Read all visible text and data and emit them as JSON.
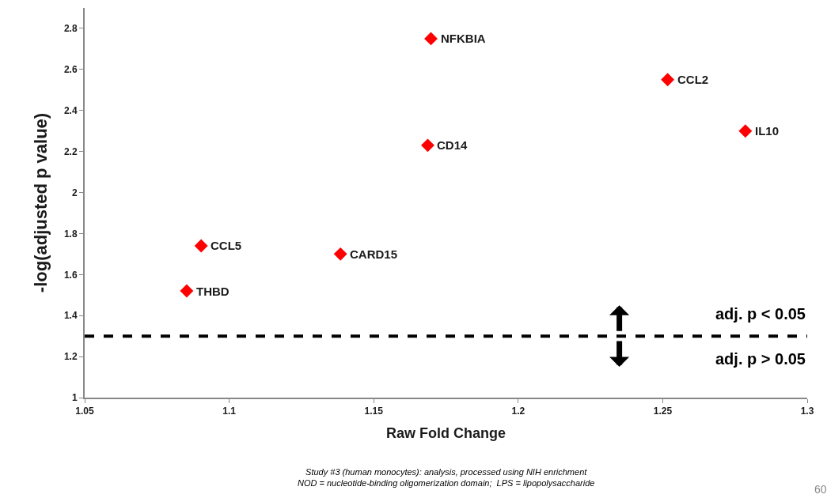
{
  "chart_data": {
    "type": "scatter",
    "xlabel": "Raw Fold Change",
    "ylabel": "-log(adjusted p value)",
    "x": [
      1.0853,
      1.0903,
      1.1385,
      1.1687,
      1.1698,
      1.2517,
      1.2786
    ],
    "series": [
      {
        "color": "#ff0000",
        "values": [
          1.52,
          1.74,
          1.7,
          2.23,
          2.75,
          2.55,
          2.3
        ]
      }
    ],
    "marker": "diamond",
    "xlim": [
      1.05,
      1.3
    ],
    "xticks": [
      1.05,
      1.1,
      1.15,
      1.2,
      1.25,
      1.3
    ],
    "ylim": [
      1,
      2.9
    ],
    "yticks": [
      1,
      1.2,
      1.4,
      1.6,
      1.8,
      2,
      2.2,
      2.4,
      2.6,
      2.8
    ],
    "ref_lines": [
      {
        "axis": "y",
        "value": 1.3,
        "color": "#000000",
        "line_style": "dashed"
      }
    ],
    "annotations": [
      {
        "text": "THBD",
        "x": 1.0853,
        "y": 1.52
      },
      {
        "text": "CCL5",
        "x": 1.0903,
        "y": 1.74
      },
      {
        "text": "CARD15",
        "x": 1.1385,
        "y": 1.7
      },
      {
        "text": "CD14",
        "x": 1.1687,
        "y": 2.23
      },
      {
        "text": "NFKBIA",
        "x": 1.1698,
        "y": 2.75
      },
      {
        "text": "CCL2",
        "x": 1.2517,
        "y": 2.55
      },
      {
        "text": "IL10",
        "x": 1.2786,
        "y": 2.3
      },
      "adj. p < 0.05",
      "adj. p > 0.05",
      "Study #3 (human monocytes): analysis, processed using NIH enrichment",
      "NOD = nucleotide-binding oligomerization domain;  LPS = lipopolysaccharide",
      "60"
    ]
  }
}
